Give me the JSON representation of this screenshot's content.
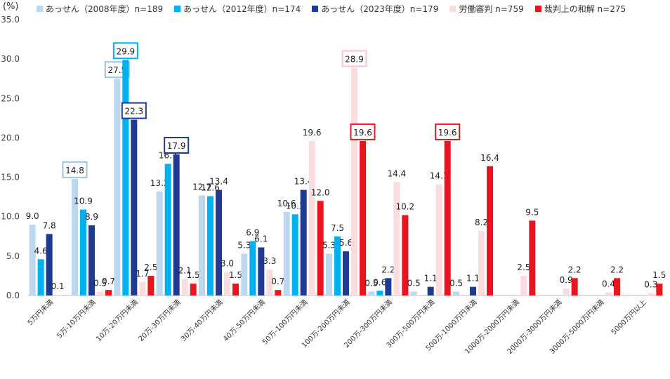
{
  "chart_data": {
    "type": "bar",
    "unit_label": "(%)",
    "ylim": [
      0,
      35
    ],
    "yticks": [
      "0.0",
      "5.0",
      "10.0",
      "15.0",
      "20.0",
      "25.0",
      "30.0",
      "35.0"
    ],
    "grid": false,
    "legend_position": "top",
    "categories": [
      "5万円未満",
      "5万-10万円未満",
      "10万-20万円未満",
      "20万-30万円未満",
      "30万-40万円未満",
      "40万-50万円未満",
      "50万-100万円未満",
      "100万-200万円未満",
      "200万-300万円未満",
      "300万-500万円未満",
      "500万-1000万円未満",
      "1000万-2000万円未満",
      "2000万-3000万円未満",
      "3000万-5000万円未満",
      "5000万円以上"
    ],
    "series": [
      {
        "name": "あっせん（2008年度）n=189",
        "color": "#bdd7ee",
        "values": [
          9.0,
          14.8,
          27.5,
          13.2,
          12.7,
          5.3,
          10.6,
          5.3,
          0.5,
          0.5,
          0.5,
          null,
          null,
          null,
          null
        ],
        "labels": [
          "9.0",
          "14.8",
          "27.5",
          "13.2",
          "12.7",
          "5.3",
          "10.6",
          "5.3",
          "0.5",
          "0.5",
          "0.5",
          "",
          "",
          "",
          ""
        ]
      },
      {
        "name": "あっせん（2012年度）n=174",
        "color": "#00b0f0",
        "values": [
          4.6,
          10.9,
          29.9,
          16.7,
          12.6,
          6.9,
          10.3,
          7.5,
          0.6,
          null,
          null,
          null,
          null,
          null,
          null
        ],
        "labels": [
          "4.6",
          "10.9",
          "29.9",
          "16.7",
          "12.6",
          "6.9",
          "10.3",
          "7.5",
          "0.6",
          "",
          "",
          "",
          "",
          "",
          ""
        ]
      },
      {
        "name": "あっせん（2023年度）n=179",
        "color": "#1f3a93",
        "values": [
          7.8,
          8.9,
          22.3,
          17.9,
          13.4,
          6.1,
          13.4,
          5.6,
          2.2,
          1.1,
          1.1,
          null,
          null,
          null,
          null
        ],
        "labels": [
          "7.8",
          "8.9",
          "22.3",
          "17.9",
          "13.4",
          "6.1",
          "13.4",
          "5.6",
          "2.2",
          "1.1",
          "1.1",
          "",
          "",
          "",
          ""
        ]
      },
      {
        "name": "労働審判 n=759",
        "color": "#fbdcdf",
        "values": [
          0.1,
          0.5,
          1.7,
          2.1,
          3.0,
          3.3,
          19.6,
          28.9,
          14.4,
          14.1,
          8.2,
          2.5,
          0.9,
          0.4,
          0.3
        ],
        "labels": [
          "0.1",
          "0.5",
          "1.7",
          "2.1",
          "3.0",
          "3.3",
          "19.6",
          "28.9",
          "14.4",
          "14.1",
          "8.2",
          "2.5",
          "0.9",
          "0.4",
          "0.3"
        ]
      },
      {
        "name": "裁判上の和解 n=275",
        "color": "#e8141e",
        "values": [
          null,
          0.7,
          2.5,
          1.5,
          1.5,
          0.7,
          12.0,
          19.6,
          10.2,
          19.6,
          16.4,
          9.5,
          2.2,
          2.2,
          1.5
        ],
        "labels": [
          "",
          "0.7",
          "2.5",
          "1.5",
          "1.5",
          "0.7",
          "12.0",
          "19.6",
          "10.2",
          "19.6",
          "16.4",
          "9.5",
          "2.2",
          "2.2",
          "1.5"
        ]
      }
    ],
    "highlighted_labels": [
      {
        "series": 0,
        "category": 1
      },
      {
        "series": 0,
        "category": 2
      },
      {
        "series": 1,
        "category": 2
      },
      {
        "series": 2,
        "category": 2
      },
      {
        "series": 2,
        "category": 3
      },
      {
        "series": 3,
        "category": 7
      },
      {
        "series": 4,
        "category": 7
      },
      {
        "series": 4,
        "category": 9
      }
    ]
  }
}
